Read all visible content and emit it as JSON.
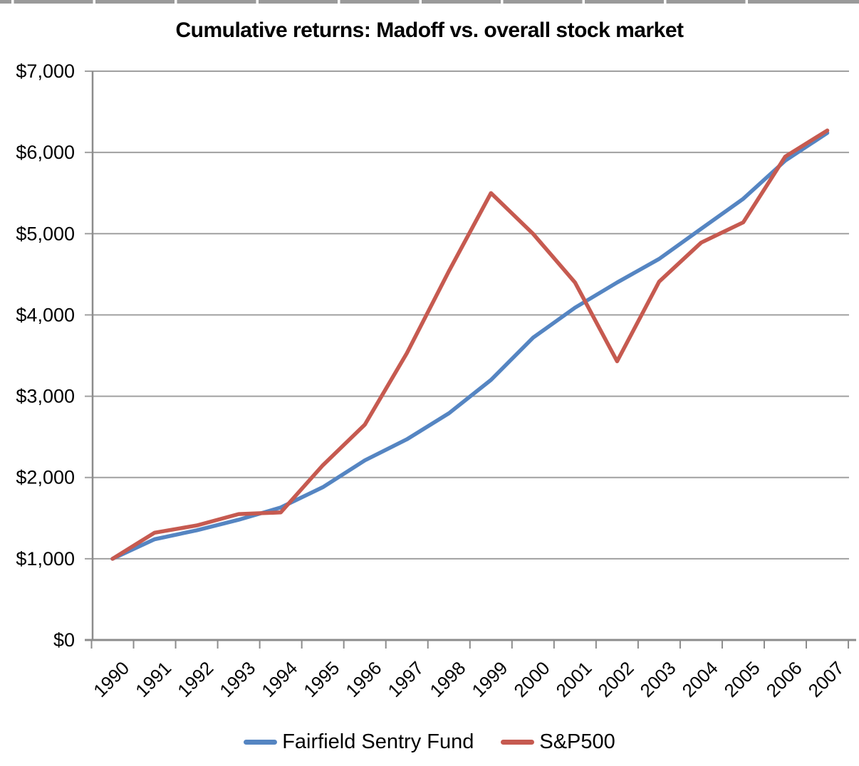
{
  "chart_data": {
    "type": "line",
    "title": "Cumulative returns: Madoff vs. overall stock market",
    "categories": [
      "1990",
      "1991",
      "1992",
      "1993",
      "1994",
      "1995",
      "1996",
      "1997",
      "1998",
      "1999",
      "2000",
      "2001",
      "2002",
      "2003",
      "2004",
      "2005",
      "2006",
      "2007"
    ],
    "series": [
      {
        "name": "Fairfield Sentry Fund",
        "color": "#5585C2",
        "values": [
          1000,
          1240,
          1350,
          1480,
          1630,
          1880,
          2210,
          2470,
          2790,
          3200,
          3720,
          4090,
          4400,
          4690,
          5060,
          5430,
          5900,
          6240
        ]
      },
      {
        "name": "S&P500",
        "color": "#C65A50",
        "values": [
          1000,
          1320,
          1410,
          1550,
          1570,
          2150,
          2650,
          3530,
          4540,
          5500,
          5000,
          4400,
          3430,
          4410,
          4890,
          5140,
          5950,
          6270
        ]
      }
    ],
    "y_axis": {
      "min": 0,
      "max": 7000,
      "step": 1000,
      "tick_labels": [
        "$0",
        "$1,000",
        "$2,000",
        "$3,000",
        "$4,000",
        "$5,000",
        "$6,000",
        "$7,000"
      ]
    },
    "x_axis": {
      "tick_labels": [
        "1990",
        "1991",
        "1992",
        "1993",
        "1994",
        "1995",
        "1996",
        "1997",
        "1998",
        "1999",
        "2000",
        "2001",
        "2002",
        "2003",
        "2004",
        "2005",
        "2006",
        "2007"
      ],
      "label_rotation_deg": -45
    },
    "grid": "horizontal",
    "legend_position": "bottom",
    "colors": {
      "gridline": "#A0A0A0",
      "axis": "#8C8C8C",
      "text": "#000000"
    }
  }
}
